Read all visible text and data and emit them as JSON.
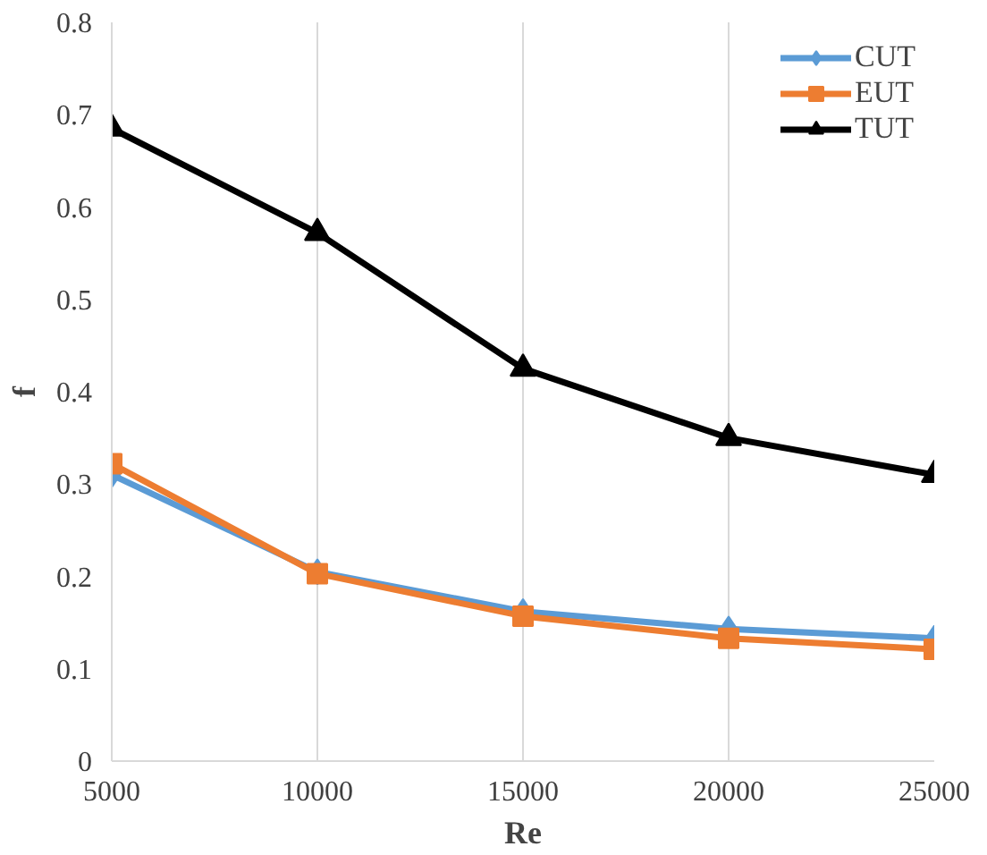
{
  "chart_data": {
    "type": "line",
    "xlabel": "Re",
    "ylabel": "f",
    "x": [
      5000,
      10000,
      15000,
      20000,
      25000
    ],
    "xlim": [
      5000,
      25000
    ],
    "xticks": [
      5000,
      10000,
      15000,
      20000,
      25000
    ],
    "ylim": [
      0,
      0.8
    ],
    "yticks": [
      0,
      0.1,
      0.2,
      0.3,
      0.4,
      0.5,
      0.6,
      0.7,
      0.8
    ],
    "grid": "x",
    "legend": "top right",
    "line_style": "solid",
    "series": [
      {
        "name": "CUT",
        "color": "#5b9bd5",
        "marker": "diamond",
        "values": [
          0.31,
          0.205,
          0.162,
          0.143,
          0.133
        ]
      },
      {
        "name": "EUT",
        "color": "#ed7d31",
        "marker": "square",
        "values": [
          0.322,
          0.203,
          0.157,
          0.133,
          0.121
        ]
      },
      {
        "name": "TUT",
        "color": "#000000",
        "marker": "triangle",
        "values": [
          0.685,
          0.572,
          0.425,
          0.35,
          0.31
        ]
      }
    ]
  }
}
